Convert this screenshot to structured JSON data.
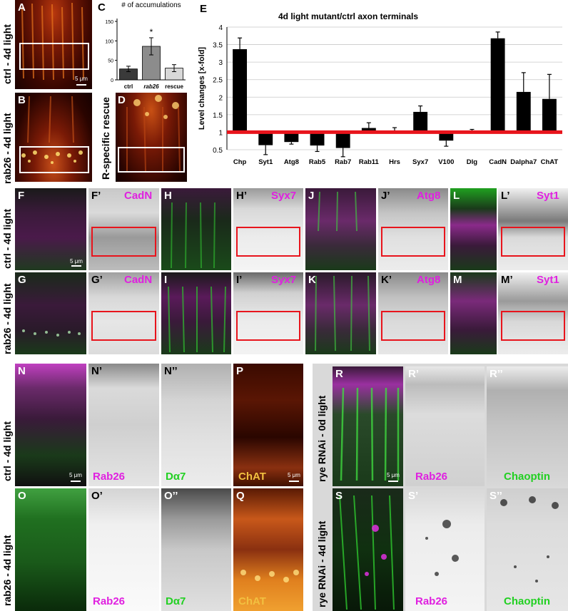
{
  "panel_letters": {
    "A": "A",
    "B": "B",
    "C": "C",
    "D": "D",
    "E": "E",
    "F": "F",
    "Fp": "F’",
    "G": "G",
    "Gp": "G’",
    "H": "H",
    "Hp": "H’",
    "I": "I",
    "Ip": "I’",
    "J": "J",
    "Jp": "J’",
    "K": "K",
    "Kp": "K’",
    "L": "L",
    "Lp": "L’",
    "M": "M",
    "Mp": "M’",
    "N": "N",
    "Np": "N’",
    "Npp": "N’’",
    "O": "O",
    "Op": "O’",
    "Opp": "O’’",
    "P": "P",
    "Q": "Q",
    "R": "R",
    "Rp": "R’",
    "Rpp": "R’’",
    "S": "S",
    "Sp": "S’",
    "Spp": "S’’"
  },
  "row_labels": {
    "ctrl_a": "ctrl - 4d light",
    "rab26_b": "rab26 - 4d light",
    "rescue_d": "R-specific rescue",
    "ctrl_f": "ctrl - 4d light",
    "rab26_g": "rab26 - 4d light",
    "ctrl_n": "ctrl - 4d light",
    "rab26_o": "rab26 - 4d light",
    "rye_r": "rye RNAi - 0d light",
    "rye_s": "rye RNAi - 4d light"
  },
  "stain_labels": {
    "cadn": "CadN",
    "syx7": "Syx7",
    "atg8": "Atg8",
    "syt1": "Syt1",
    "rab26": "Rab26",
    "da7": "Dα7",
    "chat": "ChAT",
    "chaoptin": "Chaoptin"
  },
  "scale_bar": "5 μm",
  "colors": {
    "magenta": "#e020e0",
    "green": "#22d022",
    "red_line": "#e8141c",
    "chat_yellow": "#f2c040"
  },
  "chart_data": [
    {
      "type": "bar",
      "title": "# of accumulations",
      "categories": [
        "ctrl",
        "rab26",
        "rescue"
      ],
      "values": [
        28,
        86,
        30
      ],
      "errors": [
        7,
        22,
        9
      ],
      "bar_colors": [
        "#3a3a3a",
        "#8c8c8c",
        "#d8d8d8"
      ],
      "ylim": [
        0,
        150
      ],
      "yticks": [
        "0",
        "50",
        "100",
        "150"
      ],
      "annotation": "*",
      "xlabel": "",
      "ylabel": ""
    },
    {
      "type": "bar",
      "title": "4d light mutant/ctrl axon terminals",
      "ylabel": "Level changes [x-fold]",
      "xlabel": "",
      "baseline": 1,
      "ylim": [
        0,
        4
      ],
      "yticks": [
        "0.5",
        "1",
        "1.5",
        "2",
        "2.5",
        "3",
        "3.5",
        "4"
      ],
      "categories": [
        "Chp",
        "Syt1",
        "Atg8",
        "Rab5",
        "Rab7",
        "Rab11",
        "Hrs",
        "Syx7",
        "V100",
        "Dlg",
        "CadN",
        "Dalpha7",
        "ChAT"
      ],
      "values": [
        3.37,
        0.63,
        0.72,
        0.62,
        0.55,
        1.12,
        1.03,
        1.58,
        0.76,
        1.03,
        3.68,
        2.15,
        1.95
      ],
      "errors": [
        0.32,
        0.27,
        0.06,
        0.17,
        0.25,
        0.15,
        0.1,
        0.17,
        0.16,
        0.05,
        0.18,
        0.55,
        0.7
      ]
    }
  ]
}
